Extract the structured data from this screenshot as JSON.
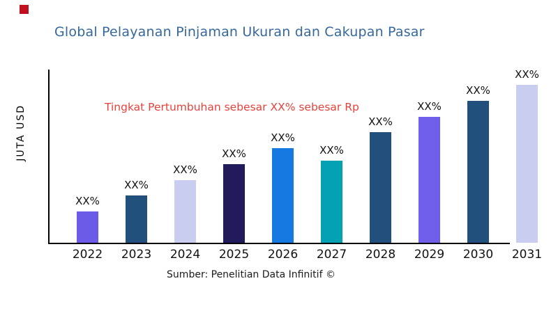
{
  "page": {
    "background": "#ffffff"
  },
  "brand": {
    "mark_color": "#C00F1F"
  },
  "chart_data": {
    "type": "bar",
    "title": "Global Pelayanan Pinjaman Ukuran dan Cakupan Pasar",
    "title_color": "#35689B",
    "ylabel": "JUTA USD",
    "xlabel": "",
    "categories": [
      "2022",
      "2023",
      "2024",
      "2025",
      "2026",
      "2027",
      "2028",
      "2029",
      "2030",
      "2031"
    ],
    "bar_labels": [
      "XX%",
      "XX%",
      "XX%",
      "XX%",
      "XX%",
      "XX%",
      "XX%",
      "XX%",
      "XX%",
      "XX%"
    ],
    "values": [
      45,
      68,
      90,
      113,
      136,
      118,
      159,
      181,
      204,
      227
    ],
    "ylim": [
      0,
      250
    ],
    "bar_colors": [
      "#6C5AE8",
      "#21507D",
      "#C9CDEF",
      "#211A5B",
      "#1679E2",
      "#03A1B3",
      "#21507D",
      "#6F5EE9",
      "#21507D",
      "#C9CDEF"
    ],
    "grid": false,
    "legend": false,
    "axis_color": "#000000",
    "annotation": "Tingkat Pertumbuhan sebesar XX% sebesar Rp",
    "annotation_color": "#E8413B",
    "source": "Sumber: Penelitian Data Infinitif ©"
  }
}
